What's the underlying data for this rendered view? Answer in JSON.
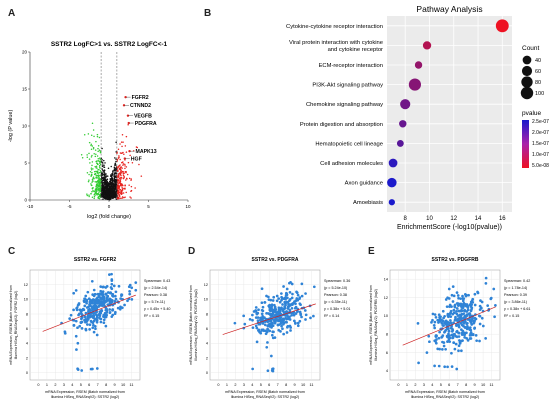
{
  "panels": {
    "a": {
      "label": "A"
    },
    "b": {
      "label": "B"
    },
    "c": {
      "label": "C"
    },
    "d": {
      "label": "D"
    },
    "e": {
      "label": "E"
    }
  },
  "chart_data": [
    {
      "id": "volcano",
      "type": "scatter",
      "title": "SSTR2 LogFC>1 vs. SSTR2 LogFC<-1",
      "xlabel": "log2 (fold change)",
      "ylabel": "-log (P value)",
      "xlim": [
        -10,
        10
      ],
      "ylim": [
        0,
        20
      ],
      "xticks": [
        -10,
        -5,
        0,
        5,
        10
      ],
      "yticks": [
        0,
        5,
        10,
        15,
        20
      ],
      "thresholds_x": [
        -1,
        1
      ],
      "colors": {
        "down": "#33cc33",
        "neutral": "#111111",
        "up": "#e8231f"
      },
      "annotations": [
        {
          "text": "FGFR2",
          "x": 2.1,
          "y": 13.9
        },
        {
          "text": "CTNND2",
          "x": 1.9,
          "y": 12.8
        },
        {
          "text": "VEGFB",
          "x": 2.4,
          "y": 11.4
        },
        {
          "text": "PDGFRA",
          "x": 2.5,
          "y": 10.4
        },
        {
          "text": "MAPK13",
          "x": 2.6,
          "y": 6.6
        },
        {
          "text": "HGF",
          "x": 2.0,
          "y": 5.6
        }
      ]
    },
    {
      "id": "pathway",
      "type": "scatter",
      "title": "Pathway Analysis",
      "xlabel": "EnrichmentScore (-log10(pvalue))",
      "xlim": [
        6.5,
        16.8
      ],
      "xticks": [
        8,
        10,
        12,
        14,
        16
      ],
      "categories": [
        "Cytokine-cytokine receptor interaction",
        "Viral protein interaction with cytokine and cytokine receptor",
        "ECM-receptor interaction",
        "PI3K-Akt signaling pathway",
        "Chemokine signaling pathway",
        "Protein digestion and absorption",
        "Hematopoietic cell lineage",
        "Cell adhesion molecules",
        "Axon guidance",
        "Amoebiasis"
      ],
      "x": [
        16.0,
        9.8,
        9.1,
        8.8,
        8.0,
        7.8,
        7.6,
        7.0,
        6.9,
        6.9
      ],
      "count": [
        110,
        35,
        25,
        95,
        60,
        25,
        20,
        40,
        50,
        15
      ],
      "pvalue": [
        5e-12,
        1e-10,
        5e-10,
        1e-09,
        3e-09,
        5e-09,
        1e-08,
        1e-07,
        2.3e-07,
        2.5e-07
      ],
      "legend_count": {
        "title": "Count",
        "values": [
          40,
          60,
          80,
          100
        ]
      },
      "legend_pvalue": {
        "title": "pvalue",
        "ticks": [
          "2.5e-07",
          "2.0e-07",
          "1.5e-07",
          "1.0e-07",
          "5.0e-08"
        ],
        "color_high": "#1a1acc",
        "color_low": "#ee1122"
      }
    },
    {
      "id": "corr_fgfr2",
      "type": "scatter",
      "title": "SSTR2 vs. FGFR2",
      "xlabel": "mRNA Expression, RSEM (Batch normalized from Illumina HiSeq_RNASeqV2): SSTR2 (log2)",
      "ylabel": "mRNA Expression, RSEM (Batch normalized from Illumina HiSeq_RNASeqV2): FGFR2 (log2)",
      "xlim": [
        -1,
        12
      ],
      "ylim": [
        -1,
        14
      ],
      "xticks": [
        0,
        1,
        2,
        3,
        4,
        5,
        6,
        7,
        8,
        9,
        10,
        11
      ],
      "yticks": [
        0,
        2,
        4,
        6,
        8,
        10,
        12
      ],
      "stats": [
        "Spearman: 0.43",
        "(p = 2.54e-14)",
        "Pearson: 0.38",
        "(p = 5.7e-11)",
        "y = 0.45x + 5.40",
        "R² = 0.15"
      ],
      "fit": {
        "slope": 0.45,
        "intercept": 5.4
      },
      "point_color": "#2f83d6",
      "line_color": "#cc2222"
    },
    {
      "id": "corr_pdgfra",
      "type": "scatter",
      "title": "SSTR2 vs. PDGFRA",
      "xlabel": "mRNA Expression, RSEM (Batch normalized from Illumina HiSeq_RNASeqV2): SSTR2 (log2)",
      "ylabel": "mRNA Expression, RSEM (Batch normalized from Illumina HiSeq_RNASeqV2): PDGFRA (log2)",
      "xlim": [
        -1,
        12
      ],
      "ylim": [
        -1,
        14
      ],
      "xticks": [
        0,
        1,
        2,
        3,
        4,
        5,
        6,
        7,
        8,
        9,
        10,
        11
      ],
      "yticks": [
        0,
        2,
        4,
        6,
        8,
        10,
        12
      ],
      "stats": [
        "Spearman: 0.36",
        "(p = 5.24e-10)",
        "Pearson: 0.38",
        "(p = 6.35e-11)",
        "y = 0.38x + 5.01",
        "R² = 0.14"
      ],
      "fit": {
        "slope": 0.38,
        "intercept": 5.01
      },
      "point_color": "#2f83d6",
      "line_color": "#cc2222"
    },
    {
      "id": "corr_pdgfrb",
      "type": "scatter",
      "title": "SSTR2 vs. PDGFRB",
      "xlabel": "mRNA Expression, RSEM (Batch normalized from Illumina HiSeq_RNASeqV2): SSTR2 (log2)",
      "ylabel": "mRNA Expression, RSEM (Batch normalized from Illumina HiSeq_RNASeqV2): PDGFRB (log2)",
      "xlim": [
        -1,
        12
      ],
      "ylim": [
        3,
        15
      ],
      "xticks": [
        0,
        1,
        2,
        3,
        4,
        5,
        6,
        7,
        8,
        9,
        10,
        11
      ],
      "yticks": [
        4,
        6,
        8,
        10,
        12,
        14
      ],
      "stats": [
        "Spearman: 0.42",
        "(p = 1.78e-14)",
        "Pearson: 0.39",
        "(p = 3.86e-11)",
        "y = 0.38x + 6.61",
        "R² = 0.15"
      ],
      "fit": {
        "slope": 0.38,
        "intercept": 6.61
      },
      "point_color": "#2f83d6",
      "line_color": "#cc2222"
    }
  ]
}
